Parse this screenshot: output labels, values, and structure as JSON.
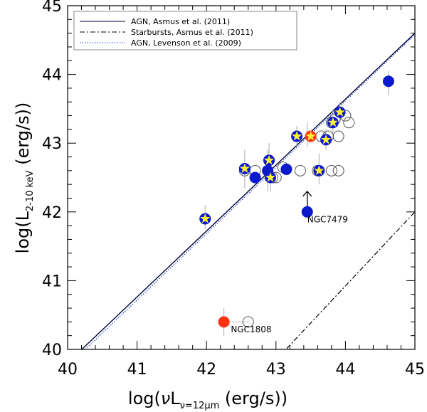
{
  "chart_data": {
    "type": "scatter",
    "xlabel": "log(νL_ν=12μm (erg/s))",
    "xlabel_parts": {
      "prefix": "log(",
      "nu": "ν",
      "L": "L",
      "sub": "ν=12μm",
      "suffix": " (erg/s))"
    },
    "ylabel": "log(L_2-10 keV (erg/s))",
    "ylabel_parts": {
      "prefix": "log(L",
      "sub": "2-10 keV",
      "suffix": " (erg/s))"
    },
    "xlim": [
      40,
      45
    ],
    "ylim": [
      40,
      45
    ],
    "xticks": [
      40,
      41,
      42,
      43,
      44,
      45
    ],
    "yticks": [
      40,
      41,
      42,
      43,
      44,
      45
    ],
    "xtick_labels": [
      "40",
      "41",
      "42",
      "43",
      "44",
      "45"
    ],
    "ytick_labels": [
      "40",
      "41",
      "42",
      "43",
      "44",
      "45"
    ],
    "legend": {
      "position": "top-left",
      "entries": [
        {
          "label": "AGN, Asmus et al. (2011)",
          "style": "solid",
          "color": "#000033"
        },
        {
          "label": "Starbursts, Asmus et al. (2011)",
          "style": "dashdot",
          "color": "#000000"
        },
        {
          "label": "AGN, Levenson et al. (2009)",
          "style": "dotted",
          "color": "#2244cc"
        }
      ]
    },
    "relations": [
      {
        "name": "AGN, Asmus et al. (2011)",
        "style": "solid",
        "color": "#000033",
        "points": [
          [
            40.1,
            39.9
          ],
          [
            45,
            44.6
          ]
        ]
      },
      {
        "name": "Starbursts, Asmus et al. (2011)",
        "style": "dashdot",
        "color": "#000000",
        "points": [
          [
            43.05,
            39.9
          ],
          [
            45,
            42.0
          ]
        ]
      },
      {
        "name": "AGN, Levenson et al. (2009)",
        "style": "dotted",
        "color": "#2244cc",
        "points": [
          [
            40.1,
            39.85
          ],
          [
            45,
            44.58
          ]
        ]
      }
    ],
    "series": [
      {
        "name": "open circles",
        "marker": "circle-open",
        "points": [
          [
            42.55,
            42.6
          ],
          [
            42.7,
            42.6
          ],
          [
            42.9,
            42.75
          ],
          [
            42.95,
            42.5
          ],
          [
            43.0,
            42.5
          ],
          [
            43.1,
            42.65
          ],
          [
            43.35,
            42.6
          ],
          [
            43.6,
            42.6
          ],
          [
            43.65,
            43.1
          ],
          [
            43.75,
            43.1
          ],
          [
            43.8,
            43.3
          ],
          [
            43.85,
            43.35
          ],
          [
            43.9,
            42.6
          ],
          [
            43.9,
            43.1
          ],
          [
            44.0,
            43.4
          ],
          [
            44.05,
            43.3
          ],
          [
            43.8,
            42.6
          ],
          [
            42.6,
            40.4
          ]
        ]
      },
      {
        "name": "filled blue",
        "marker": "circle-blue",
        "points": [
          [
            42.7,
            42.5
          ],
          [
            42.88,
            42.6
          ],
          [
            43.15,
            42.62
          ],
          [
            43.45,
            42.0
          ],
          [
            44.62,
            43.9
          ]
        ]
      },
      {
        "name": "blue with star",
        "marker": "circle-blue-star",
        "points": [
          [
            41.98,
            41.9
          ],
          [
            42.55,
            42.63
          ],
          [
            42.9,
            42.75
          ],
          [
            42.92,
            42.5
          ],
          [
            43.3,
            43.1
          ],
          [
            43.62,
            42.6
          ],
          [
            43.72,
            43.05
          ],
          [
            43.82,
            43.3
          ],
          [
            43.92,
            43.45
          ]
        ]
      },
      {
        "name": "filled red",
        "marker": "circle-red",
        "points": [
          [
            42.25,
            40.4
          ]
        ]
      },
      {
        "name": "red with star",
        "marker": "circle-red-star",
        "points": [
          [
            43.5,
            43.1
          ]
        ]
      }
    ],
    "error_bars": [
      {
        "x": 41.98,
        "y": 41.9,
        "ylo": 41.75,
        "yhi": 42.1
      },
      {
        "x": 42.55,
        "y": 42.63,
        "ylo": 42.35,
        "yhi": 42.9
      },
      {
        "x": 42.9,
        "y": 42.75,
        "ylo": 42.55,
        "yhi": 43.0
      },
      {
        "x": 42.92,
        "y": 42.5,
        "ylo": 42.3,
        "yhi": 42.65
      },
      {
        "x": 42.88,
        "y": 42.6,
        "ylo": 42.3,
        "yhi": 42.9
      },
      {
        "x": 43.3,
        "y": 43.1,
        "ylo": 42.95,
        "yhi": 43.25
      },
      {
        "x": 43.45,
        "y": 43.1,
        "ylo": 42.95,
        "yhi": 43.3
      },
      {
        "x": 43.62,
        "y": 42.6,
        "ylo": 42.4,
        "yhi": 42.85
      },
      {
        "x": 43.72,
        "y": 43.05,
        "ylo": 42.9,
        "yhi": 43.2
      },
      {
        "x": 43.82,
        "y": 43.3,
        "ylo": 43.15,
        "yhi": 43.5
      },
      {
        "x": 43.92,
        "y": 43.45,
        "ylo": 43.3,
        "yhi": 43.6
      },
      {
        "x": 44.62,
        "y": 43.9,
        "ylo": 43.7,
        "yhi": 44.05
      },
      {
        "x": 42.25,
        "y": 40.4,
        "ylo": 40.2,
        "yhi": 40.6
      }
    ],
    "horizontal_links": [
      {
        "y": 40.4,
        "x1": 42.25,
        "x2": 42.6
      }
    ],
    "annotations": [
      {
        "text": "NGC7479",
        "x": 43.45,
        "y": 41.85
      },
      {
        "text": "NGC1808",
        "x": 42.35,
        "y": 40.25
      }
    ],
    "upper_limit_arrows": [
      {
        "x": 43.45,
        "y_from": 42.08,
        "y_to": 42.3
      }
    ]
  }
}
